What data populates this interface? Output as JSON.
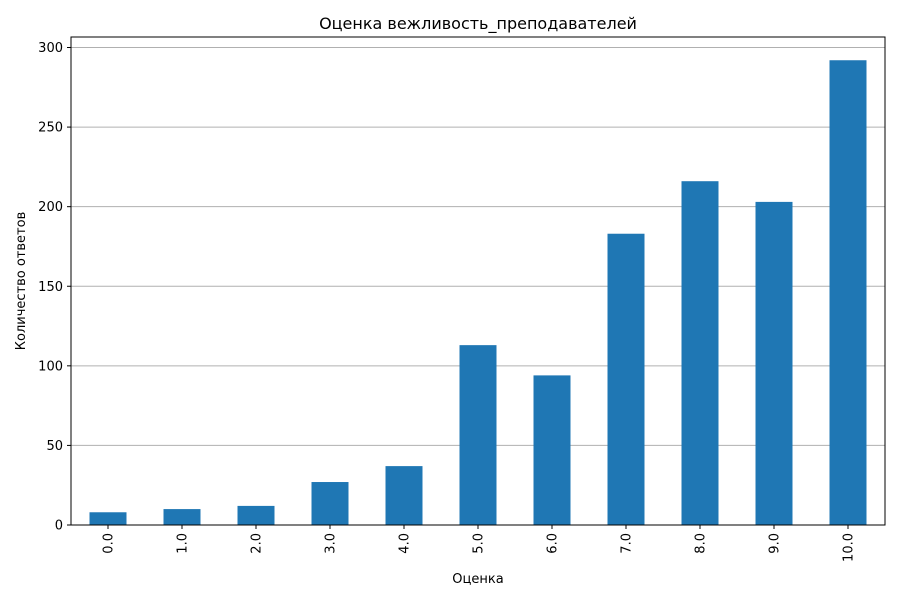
{
  "chart_data": {
    "type": "bar",
    "title": "Оценка вежливость_преподавателей",
    "xlabel": "Оценка",
    "ylabel": "Количество ответов",
    "categories": [
      "0.0",
      "1.0",
      "2.0",
      "3.0",
      "4.0",
      "5.0",
      "6.0",
      "7.0",
      "8.0",
      "9.0",
      "10.0"
    ],
    "values": [
      8,
      10,
      12,
      27,
      37,
      113,
      94,
      183,
      216,
      203,
      292
    ],
    "ylim": [
      0,
      306.6
    ],
    "yticks": [
      0,
      50,
      100,
      150,
      200,
      250,
      300
    ],
    "grid": "y",
    "bar_color": "#1f77b4",
    "tick_rotation_x": 90
  }
}
